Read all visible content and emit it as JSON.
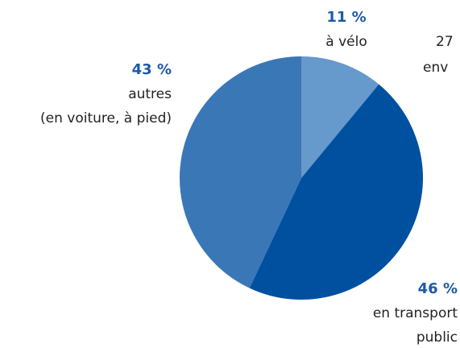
{
  "chart_data": {
    "type": "pie",
    "categories": [
      [
        "à vélo"
      ],
      [
        "en transport",
        "public"
      ],
      [
        "autres",
        "(en voiture, à pied)"
      ]
    ],
    "values": [
      11,
      46,
      43
    ],
    "value_labels": [
      "11 %",
      "46 %",
      "43 %"
    ],
    "colors": [
      "#6699cc",
      "#0050a0",
      "#3a77b7"
    ],
    "annotations": [
      "27",
      "env"
    ]
  }
}
